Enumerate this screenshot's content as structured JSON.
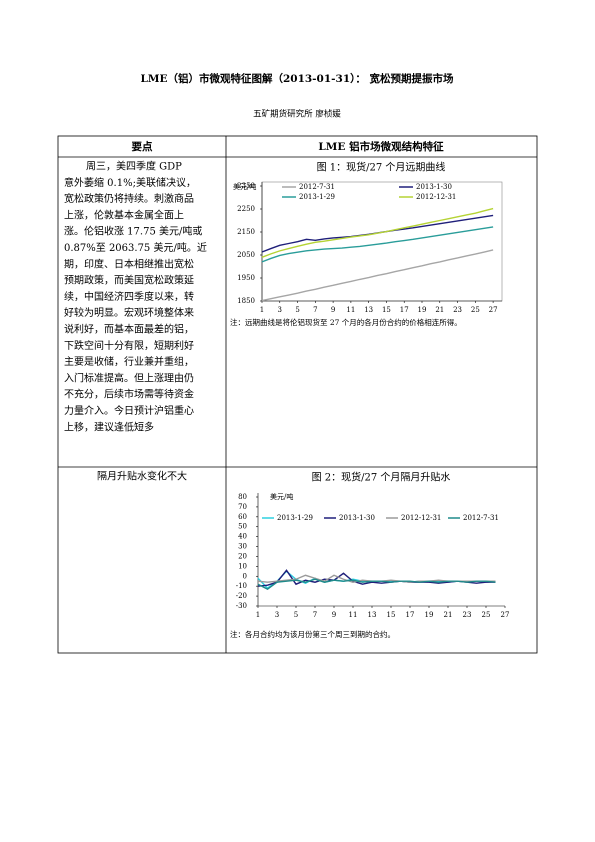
{
  "header": {
    "title": "LME（铝）市微观特征图解（2013-01-31）：  宽松预期提振市场",
    "author": "五矿期货研究所  廖桢媛"
  },
  "table": {
    "columns": [
      "要点",
      "LME 铝市场微观结构特征"
    ],
    "rows": [
      {
        "summary": [
          "周三，美四季度 GDP",
          "意外萎缩 0.1%;美联储决议，",
          "宽松政策仍将持续。刺激商品",
          "上涨，伦敦基本金属全面上",
          "涨。伦铝收涨 17.75 美元/吨或",
          "0.87%至 2063.75 美元/吨。近",
          "期，印度、日本相继推出宽松",
          "预期政策，而美国宽松政策延",
          "续，中国经济四季度以来，转",
          "好较为明显。宏观环境整体来",
          "说利好，而基本面最差的铝，",
          "下跌空间十分有限，短期利好",
          "主要是收储，行业兼并重组，",
          "入门标准提高。但上涨理由仍",
          "不充分，后续市场需等待资金",
          "力量介入。今日预计沪铝重心",
          "上移，建议逢低短多"
        ],
        "note": "注：远期曲线是将伦铝现货至 27 个月的各月份合约的价格相连所得。"
      },
      {
        "summary": [
          "隔月升贴水变化不大"
        ],
        "note": "注：各月合约均为该月份第三个周三到期的合约。"
      }
    ]
  },
  "chart_data": [
    {
      "type": "line",
      "title": "图 1：现货/27 个月远期曲线",
      "y_label": "美元/吨",
      "x": [
        1,
        2,
        3,
        4,
        5,
        6,
        7,
        8,
        9,
        10,
        11,
        12,
        13,
        14,
        15,
        16,
        17,
        18,
        19,
        20,
        21,
        22,
        23,
        24,
        25,
        26,
        27
      ],
      "xlim": [
        1,
        28
      ],
      "xticks": [
        1,
        3,
        5,
        7,
        9,
        11,
        13,
        15,
        17,
        19,
        21,
        23,
        25,
        27
      ],
      "ylim": [
        1850,
        2350
      ],
      "yticks": [
        1850,
        1950,
        2050,
        2150,
        2250,
        2350
      ],
      "frame": true,
      "series": [
        {
          "name": "2012-7-31",
          "color": "#a6a6a6",
          "values": [
            1852,
            1860,
            1868,
            1876,
            1884,
            1893,
            1901,
            1910,
            1918,
            1927,
            1935,
            1944,
            1952,
            1961,
            1969,
            1978,
            1986,
            1995,
            2003,
            2012,
            2020,
            2029,
            2037,
            2046,
            2054,
            2063,
            2072
          ]
        },
        {
          "name": "2013-1-30",
          "color": "#1f1f7a",
          "values": [
            2063,
            2078,
            2092,
            2100,
            2108,
            2118,
            2114,
            2120,
            2124,
            2127,
            2130,
            2135,
            2140,
            2146,
            2152,
            2158,
            2163,
            2168,
            2174,
            2180,
            2186,
            2192,
            2198,
            2204,
            2210,
            2216,
            2222
          ]
        },
        {
          "name": "2013-1-29",
          "color": "#2a9d9a",
          "values": [
            2020,
            2035,
            2048,
            2056,
            2062,
            2068,
            2072,
            2076,
            2078,
            2080,
            2084,
            2087,
            2092,
            2097,
            2102,
            2108,
            2113,
            2118,
            2124,
            2130,
            2136,
            2142,
            2148,
            2154,
            2160,
            2166,
            2172
          ]
        },
        {
          "name": "2012-12-31",
          "color": "#b5d334",
          "values": [
            2040,
            2055,
            2068,
            2078,
            2088,
            2097,
            2105,
            2110,
            2116,
            2122,
            2128,
            2133,
            2138,
            2145,
            2152,
            2160,
            2168,
            2176,
            2184,
            2192,
            2200,
            2208,
            2216,
            2224,
            2232,
            2242,
            2252
          ]
        }
      ]
    },
    {
      "type": "line",
      "title": "图 2：现货/27 个月隔月升贴水",
      "y_label": "美元/吨",
      "x": [
        1,
        2,
        3,
        4,
        5,
        6,
        7,
        8,
        9,
        10,
        11,
        12,
        13,
        14,
        15,
        16,
        17,
        18,
        19,
        20,
        21,
        22,
        23,
        24,
        25,
        26
      ],
      "xlim": [
        1,
        27
      ],
      "xticks": [
        1,
        3,
        5,
        7,
        9,
        11,
        13,
        15,
        17,
        19,
        21,
        23,
        25,
        27
      ],
      "ylim": [
        -30,
        80
      ],
      "yticks": [
        -30,
        -20,
        -10,
        0,
        10,
        20,
        30,
        40,
        50,
        60,
        70,
        80
      ],
      "frame": false,
      "series": [
        {
          "name": "2013-1-29",
          "color": "#2ed0e0",
          "values": [
            -2,
            -12,
            -5,
            5,
            -3,
            -7,
            -2,
            -6,
            -4,
            -5,
            -3,
            -5,
            -6,
            -5,
            -5,
            -5,
            -6,
            -5,
            -5,
            -5,
            -6,
            -5,
            -5,
            -5,
            -6,
            -5
          ]
        },
        {
          "name": "2013-1-30",
          "color": "#1f1f7a",
          "values": [
            -10,
            -9,
            -6,
            6,
            -8,
            -4,
            -6,
            -3,
            -4,
            3,
            -5,
            -8,
            -6,
            -7,
            -6,
            -5,
            -6,
            -6,
            -6,
            -7,
            -6,
            -5,
            -6,
            -7,
            -6,
            -6
          ]
        },
        {
          "name": "2012-12-31",
          "color": "#9a9a9a",
          "values": [
            -5,
            -6,
            -5,
            -4,
            -3,
            1,
            -2,
            -5,
            1,
            -3,
            -6,
            -4,
            -5,
            -5,
            -4,
            -5,
            -6,
            -5,
            -5,
            -4,
            -5,
            -5,
            -5,
            -5,
            -5,
            -5
          ]
        },
        {
          "name": "2012-7-31",
          "color": "#1f8a8a",
          "values": [
            -8,
            -13,
            -6,
            -5,
            -4,
            -6,
            -3,
            -6,
            -4,
            -5,
            -4,
            -6,
            -5,
            -5,
            -6,
            -5,
            -5,
            -6,
            -5,
            -6,
            -5,
            -5,
            -6,
            -5,
            -5,
            -6
          ]
        }
      ]
    }
  ]
}
